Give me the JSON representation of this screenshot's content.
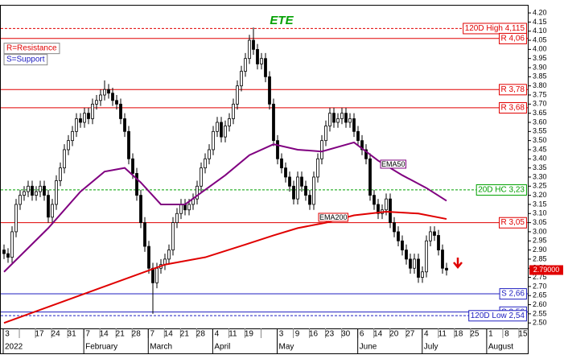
{
  "chart_data": {
    "type": "candlestick",
    "title": "ETE",
    "candles": {
      "open": [
        2.9,
        2.88,
        2.86,
        3.0,
        3.15,
        3.2,
        3.22,
        3.25,
        3.2,
        3.22,
        3.25,
        3.2,
        3.08,
        3.15,
        3.28,
        3.35,
        3.45,
        3.5,
        3.55,
        3.62,
        3.6,
        3.65,
        3.62,
        3.7,
        3.72,
        3.75,
        3.78,
        3.76,
        3.72,
        3.7,
        3.62,
        3.55,
        3.4,
        3.32,
        3.2,
        3.05,
        2.92,
        2.8,
        2.72,
        2.8,
        2.82,
        2.85,
        2.9,
        3.05,
        3.1,
        3.15,
        3.12,
        3.15,
        3.18,
        3.25,
        3.35,
        3.4,
        3.45,
        3.55,
        3.6,
        3.52,
        3.58,
        3.62,
        3.7,
        3.8,
        3.88,
        3.95,
        4.05,
        4.0,
        3.92,
        3.95,
        3.85,
        3.7,
        3.5,
        3.4,
        3.35,
        3.3,
        3.25,
        3.18,
        3.3,
        3.25,
        3.2,
        3.15,
        3.3,
        3.4,
        3.5,
        3.58,
        3.65,
        3.6,
        3.62,
        3.65,
        3.6,
        3.62,
        3.55,
        3.5,
        3.45,
        3.4,
        3.2,
        3.15,
        3.1,
        3.12,
        3.18,
        3.05,
        3.0,
        2.95,
        2.9,
        2.85,
        2.8,
        2.85,
        2.75,
        2.78,
        2.95,
        3.0,
        2.98,
        2.9,
        2.8
      ],
      "high": [
        2.93,
        2.91,
        3.03,
        3.18,
        3.23,
        3.25,
        3.28,
        3.28,
        3.25,
        3.28,
        3.28,
        3.23,
        3.18,
        3.31,
        3.38,
        3.48,
        3.53,
        3.58,
        3.65,
        3.65,
        3.68,
        3.68,
        3.73,
        3.75,
        3.78,
        3.83,
        3.81,
        3.79,
        3.75,
        3.73,
        3.65,
        3.58,
        3.43,
        3.35,
        3.23,
        3.08,
        2.95,
        2.83,
        2.83,
        2.85,
        2.88,
        2.93,
        3.08,
        3.13,
        3.18,
        3.18,
        3.18,
        3.21,
        3.28,
        3.38,
        3.43,
        3.48,
        3.58,
        3.63,
        3.63,
        3.61,
        3.65,
        3.73,
        3.83,
        3.91,
        3.98,
        4.08,
        4.12,
        4.03,
        3.98,
        3.98,
        3.88,
        3.73,
        3.53,
        3.43,
        3.38,
        3.33,
        3.28,
        3.33,
        3.33,
        3.28,
        3.23,
        3.33,
        3.43,
        3.53,
        3.61,
        3.68,
        3.68,
        3.65,
        3.68,
        3.68,
        3.65,
        3.65,
        3.58,
        3.53,
        3.48,
        3.43,
        3.23,
        3.18,
        3.15,
        3.21,
        3.21,
        3.08,
        3.03,
        2.98,
        2.93,
        2.88,
        2.88,
        2.88,
        2.81,
        2.98,
        3.03,
        3.03,
        3.01,
        2.93,
        2.83
      ],
      "low": [
        2.85,
        2.83,
        2.83,
        2.97,
        3.12,
        3.17,
        3.19,
        3.17,
        3.17,
        3.19,
        3.17,
        3.05,
        3.05,
        3.12,
        3.25,
        3.32,
        3.42,
        3.47,
        3.52,
        3.57,
        3.57,
        3.59,
        3.59,
        3.67,
        3.69,
        3.72,
        3.73,
        3.69,
        3.67,
        3.59,
        3.52,
        3.37,
        3.29,
        3.17,
        3.02,
        2.89,
        2.77,
        2.55,
        2.69,
        2.77,
        2.79,
        2.82,
        2.87,
        3.02,
        3.07,
        3.09,
        3.09,
        3.12,
        3.15,
        3.22,
        3.32,
        3.37,
        3.42,
        3.52,
        3.49,
        3.49,
        3.55,
        3.59,
        3.67,
        3.77,
        3.85,
        3.92,
        3.97,
        3.89,
        3.89,
        3.82,
        3.67,
        3.47,
        3.37,
        3.32,
        3.27,
        3.22,
        3.15,
        3.15,
        3.22,
        3.17,
        3.12,
        3.12,
        3.27,
        3.37,
        3.47,
        3.55,
        3.57,
        3.57,
        3.59,
        3.57,
        3.57,
        3.52,
        3.47,
        3.42,
        3.37,
        3.17,
        3.12,
        3.07,
        3.07,
        3.09,
        3.02,
        2.97,
        2.92,
        2.87,
        2.82,
        2.77,
        2.77,
        2.72,
        2.72,
        2.75,
        2.92,
        2.95,
        2.87,
        2.77,
        2.76
      ],
      "close": [
        2.88,
        2.86,
        3.0,
        3.15,
        3.2,
        3.22,
        3.25,
        3.2,
        3.22,
        3.25,
        3.2,
        3.08,
        3.15,
        3.28,
        3.35,
        3.45,
        3.5,
        3.55,
        3.62,
        3.6,
        3.65,
        3.62,
        3.7,
        3.72,
        3.75,
        3.78,
        3.76,
        3.72,
        3.7,
        3.62,
        3.55,
        3.4,
        3.32,
        3.2,
        3.05,
        2.92,
        2.8,
        2.72,
        2.8,
        2.82,
        2.85,
        2.9,
        3.05,
        3.1,
        3.15,
        3.12,
        3.15,
        3.18,
        3.25,
        3.35,
        3.4,
        3.45,
        3.55,
        3.6,
        3.52,
        3.58,
        3.62,
        3.7,
        3.8,
        3.88,
        3.95,
        4.05,
        4.0,
        3.92,
        3.95,
        3.85,
        3.7,
        3.5,
        3.4,
        3.35,
        3.3,
        3.25,
        3.18,
        3.3,
        3.25,
        3.2,
        3.15,
        3.3,
        3.4,
        3.5,
        3.58,
        3.65,
        3.6,
        3.62,
        3.65,
        3.6,
        3.62,
        3.55,
        3.5,
        3.45,
        3.4,
        3.2,
        3.15,
        3.1,
        3.12,
        3.18,
        3.05,
        3.0,
        2.95,
        2.9,
        2.85,
        2.8,
        2.85,
        2.75,
        2.78,
        2.95,
        3.0,
        2.98,
        2.9,
        2.8,
        2.79
      ]
    },
    "lines": [
      {
        "name": "EMA50",
        "color": "#800080",
        "x": [
          0,
          11,
          19,
          25,
          30,
          34,
          39,
          45,
          50,
          55,
          61,
          67,
          73,
          79,
          87,
          93,
          99,
          105,
          110
        ],
        "values": [
          2.78,
          3.02,
          3.22,
          3.33,
          3.35,
          3.27,
          3.15,
          3.15,
          3.23,
          3.31,
          3.42,
          3.48,
          3.45,
          3.44,
          3.49,
          3.39,
          3.31,
          3.24,
          3.17
        ]
      },
      {
        "name": "EMA200",
        "color": "#e00000",
        "x": [
          0,
          10,
          20,
          30,
          40,
          50,
          60,
          67,
          73,
          80,
          87,
          95,
          103,
          110
        ],
        "values": [
          2.5,
          2.58,
          2.66,
          2.74,
          2.82,
          2.86,
          2.93,
          2.98,
          3.02,
          3.05,
          3.09,
          3.11,
          3.1,
          3.07
        ]
      }
    ],
    "levels": [
      {
        "value": 4.115,
        "label": "120D High 4,115",
        "color": "#e00000",
        "dashed": true
      },
      {
        "value": 4.06,
        "label": "R 4,06",
        "color": "#e00000",
        "dashed": false
      },
      {
        "value": 3.78,
        "label": "R 3,78",
        "color": "#e00000",
        "dashed": false
      },
      {
        "value": 3.68,
        "label": "R 3,68",
        "color": "#e00000",
        "dashed": false
      },
      {
        "value": 3.23,
        "label": "20D HC 3,23",
        "color": "#00a000",
        "dashed": true
      },
      {
        "value": 3.05,
        "label": "R 3,05",
        "color": "#e00000",
        "dashed": false
      },
      {
        "value": 2.66,
        "label": "S 2,66",
        "color": "#2020c0",
        "dashed": false
      },
      {
        "value": 2.56,
        "label": "S 2,56",
        "color": "#2020c0",
        "dashed": false
      },
      {
        "value": 2.54,
        "label": "120D Low 2,54",
        "color": "#2020c0",
        "dashed": true
      }
    ],
    "notes": [
      {
        "text": "R=Resistance",
        "color": "#e00000"
      },
      {
        "text": "S=Support",
        "color": "#2020c0"
      }
    ],
    "last_price": {
      "value": 2.79,
      "label": "2.79000"
    },
    "ylim": [
      2.47,
      4.24
    ],
    "yticks": [
      {
        "value": 2.5,
        "label": "2.50"
      },
      2.55,
      {
        "value": 2.6,
        "label": "2.60"
      },
      2.65,
      {
        "value": 2.7,
        "label": "2.70"
      },
      2.75,
      {
        "value": 2.8,
        "label": "2.80"
      },
      2.85,
      {
        "value": 2.9,
        "label": "2.90"
      },
      2.95,
      {
        "value": 3,
        "label": "3.00"
      },
      3.05,
      {
        "value": 3.1,
        "label": "3.10"
      },
      3.15,
      {
        "value": 3.2,
        "label": "3.20"
      },
      3.25,
      {
        "value": 3.3,
        "label": "3.30"
      },
      3.35,
      {
        "value": 3.4,
        "label": "3.40"
      },
      3.45,
      {
        "value": 3.5,
        "label": "3.50"
      },
      3.55,
      {
        "value": 3.6,
        "label": "3.60"
      },
      3.65,
      {
        "value": 3.7,
        "label": "3.70"
      },
      3.75,
      {
        "value": 3.8,
        "label": "3.80"
      },
      3.85,
      {
        "value": 3.9,
        "label": "3.90"
      },
      3.95,
      {
        "value": 4,
        "label": "4.00"
      },
      4.05,
      {
        "value": 4.1,
        "label": "4.10"
      },
      4.15,
      {
        "value": 4.2,
        "label": "4.20"
      }
    ],
    "weeks": [
      "3",
      null,
      "17",
      "24",
      "31",
      "7",
      "14",
      "21",
      "28",
      "7",
      "14",
      "21",
      "28",
      "4",
      "11",
      "19",
      null,
      "3",
      "9",
      "16",
      "23",
      "30",
      "6",
      "14",
      "20",
      "27",
      "4",
      "11",
      "18",
      "25",
      "1",
      "8",
      "15"
    ],
    "months": [
      "2022",
      "February",
      "March",
      "April",
      "May",
      "June",
      "July",
      "August"
    ]
  }
}
